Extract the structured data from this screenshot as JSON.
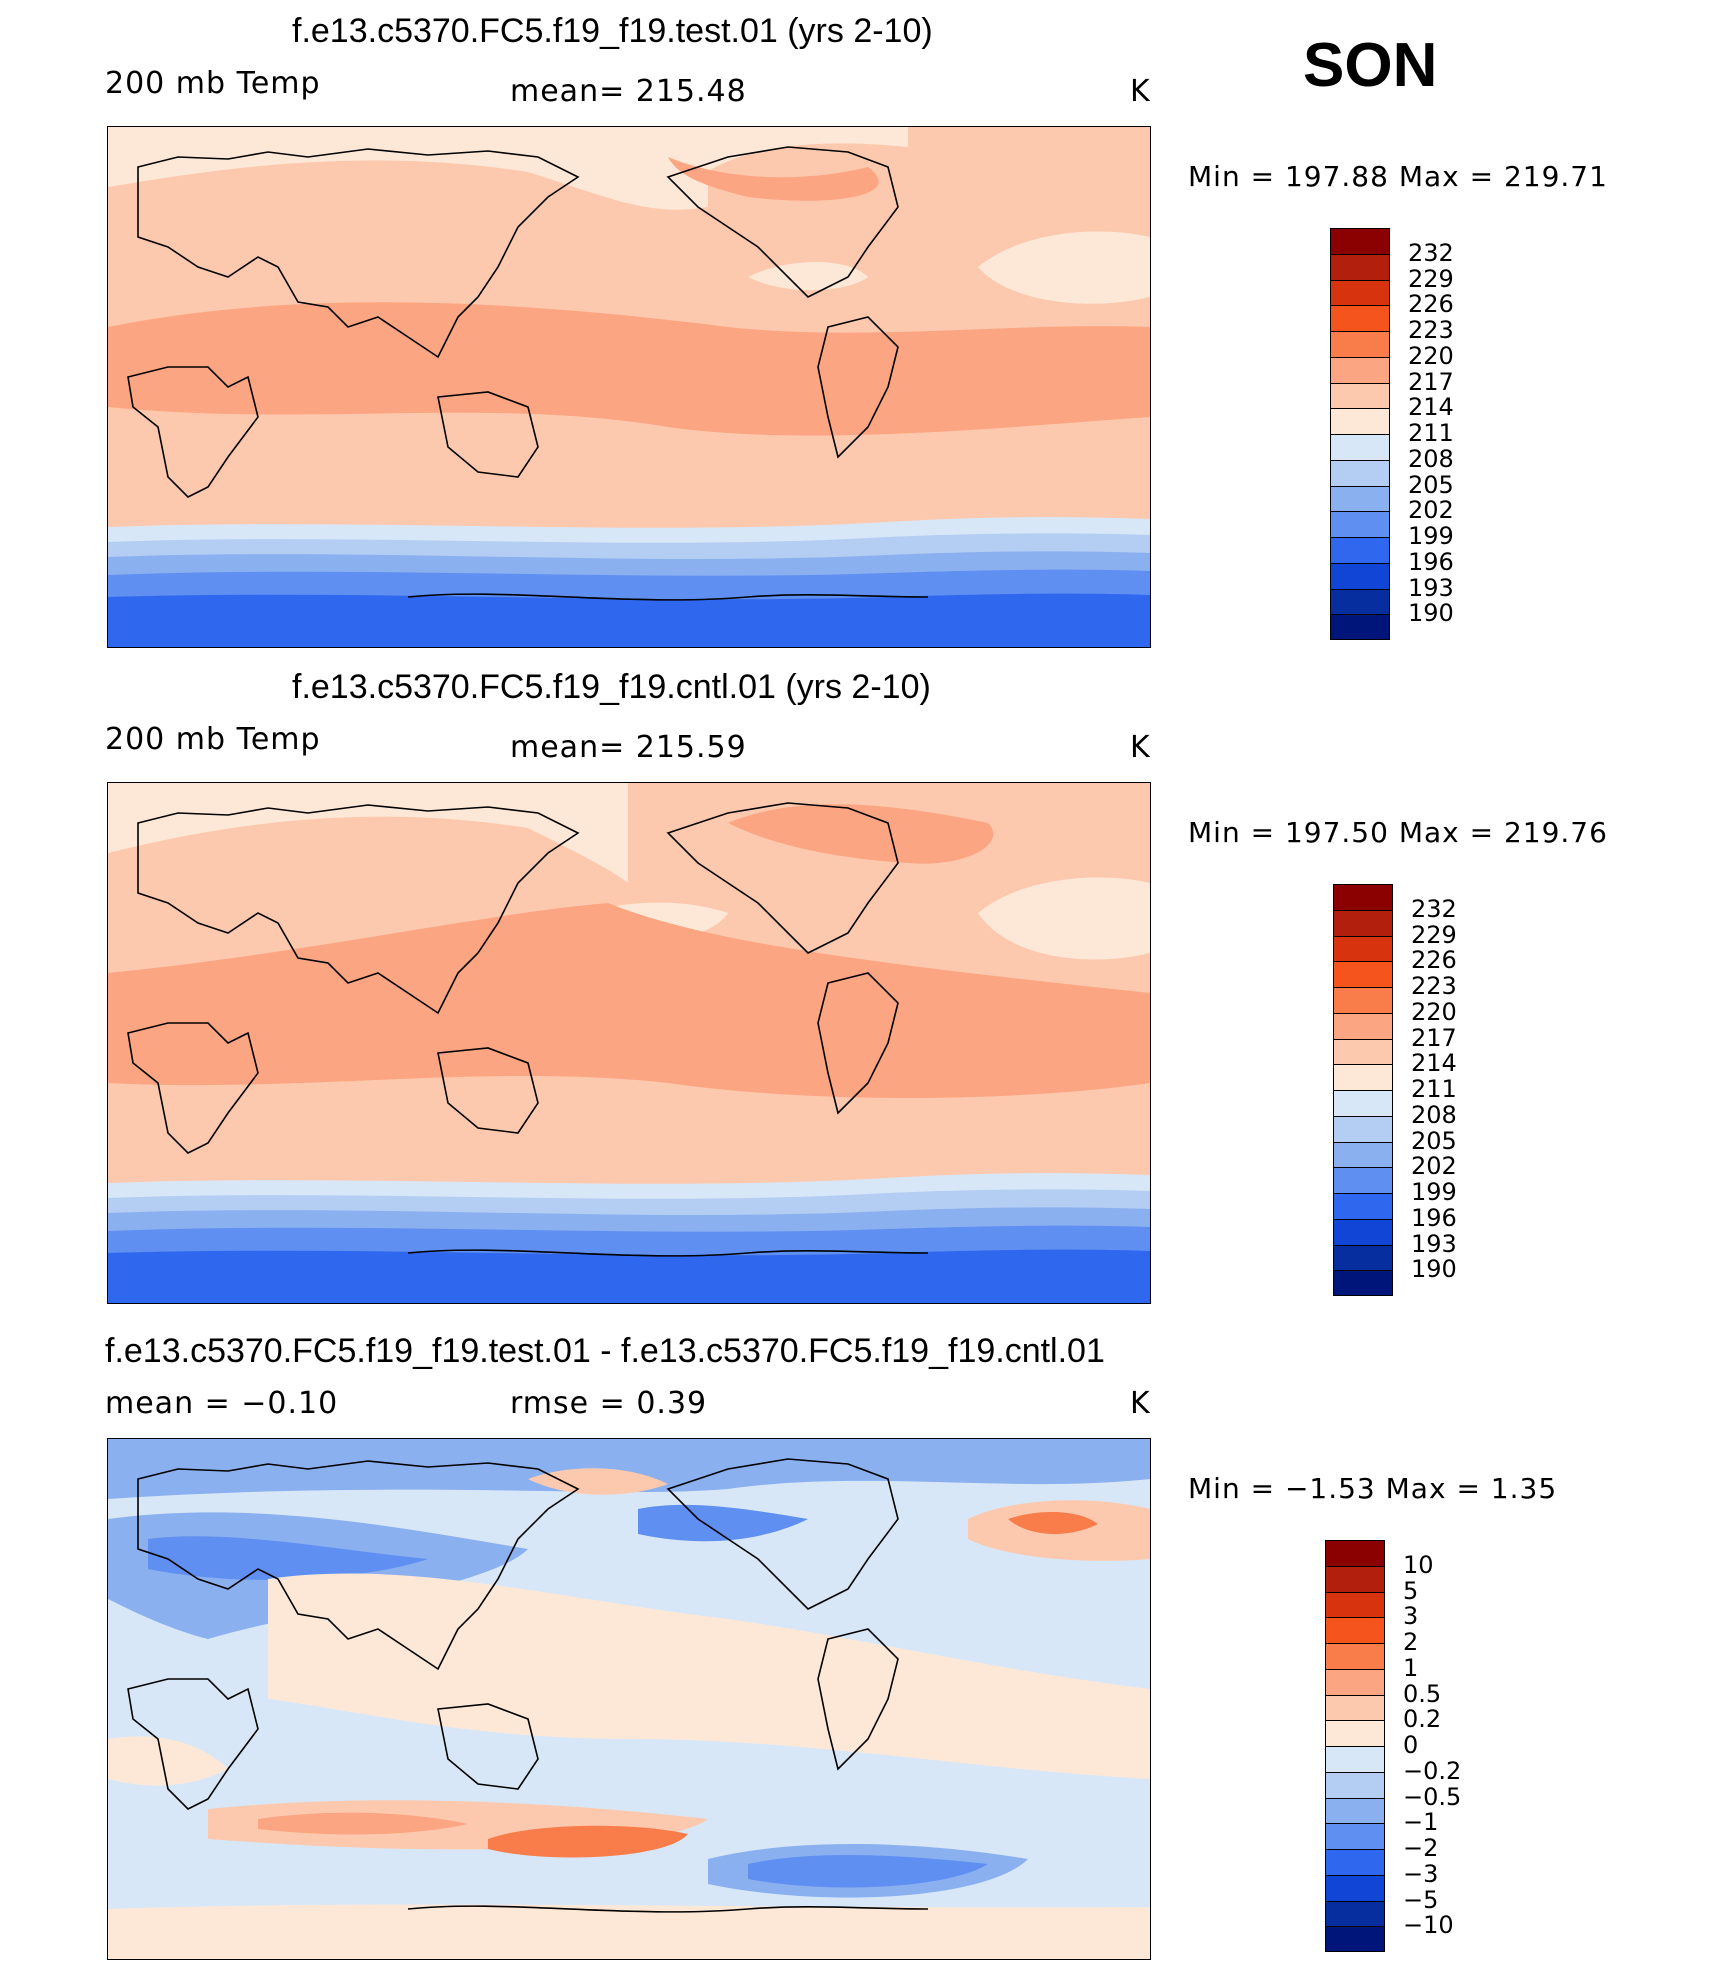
{
  "season": "SON",
  "panels": [
    {
      "title": "f.e13.c5370.FC5.f19_f19.test.01 (yrs 2-10)",
      "left_label": "200 mb Temp",
      "center_label": "mean= 215.48",
      "units": "K",
      "minmax": "Min = 197.88 Max = 219.71",
      "map_name": "test-temperature-map",
      "levels": [
        "232",
        "229",
        "226",
        "223",
        "220",
        "217",
        "214",
        "211",
        "208",
        "205",
        "202",
        "199",
        "196",
        "193",
        "190"
      ]
    },
    {
      "title": "f.e13.c5370.FC5.f19_f19.cntl.01 (yrs 2-10)",
      "left_label": "200 mb Temp",
      "center_label": "mean= 215.59",
      "units": "K",
      "minmax": "Min = 197.50 Max = 219.76",
      "map_name": "control-temperature-map",
      "levels": [
        "232",
        "229",
        "226",
        "223",
        "220",
        "217",
        "214",
        "211",
        "208",
        "205",
        "202",
        "199",
        "196",
        "193",
        "190"
      ]
    },
    {
      "title": "f.e13.c5370.FC5.f19_f19.test.01 - f.e13.c5370.FC5.f19_f19.cntl.01",
      "left_label": "mean =   −0.10",
      "center_label": "rmse =    0.39",
      "units": "K",
      "minmax": "Min =  −1.53 Max =    1.35",
      "map_name": "difference-map",
      "levels": [
        "10",
        "5",
        "3",
        "2",
        "1",
        "0.5",
        "0.2",
        "0",
        "−0.2",
        "−0.5",
        "−1",
        "−2",
        "−3",
        "−5",
        "−10"
      ]
    }
  ],
  "colors": {
    "colorbar": [
      "#8b0000",
      "#b2200d",
      "#d7330e",
      "#f5541d",
      "#f97d4b",
      "#fba582",
      "#fdc9ae",
      "#fde8d8",
      "#d8e7f7",
      "#b4cdf2",
      "#8bb0f0",
      "#5f8ff0",
      "#2f67ee",
      "#1145d6",
      "#072e9e",
      "#00157a"
    ],
    "coastline": "#000000"
  }
}
